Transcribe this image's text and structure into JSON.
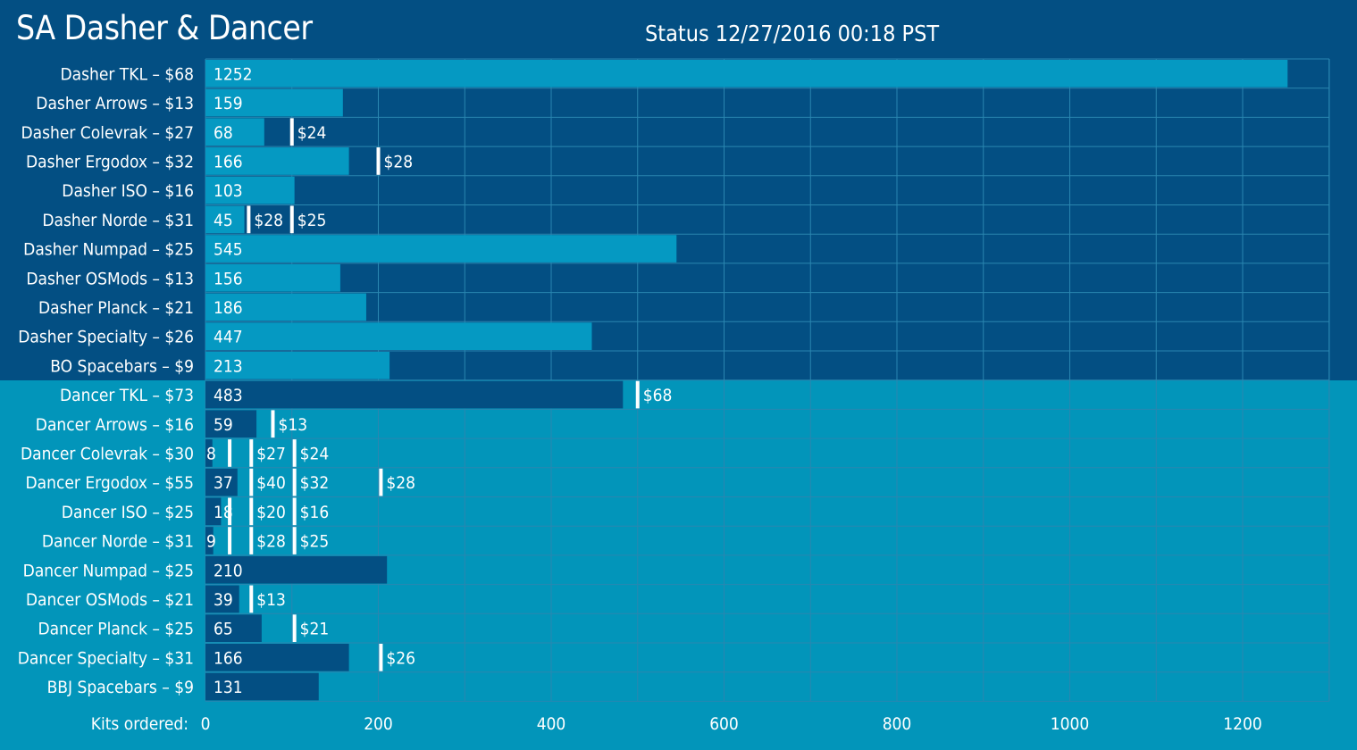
{
  "title": "SA Dasher & Dancer",
  "status": "Status 12/27/2016 00:18 PST",
  "colors": {
    "dasher_background": "#034f83",
    "dancer_background": "#0295ba",
    "dasher_bar": "#0599c2",
    "dancer_bar": "#034f83",
    "grid": "#2a86b0",
    "threshold_marker": "#ffffff",
    "text": "#ffffff"
  },
  "chart_data": {
    "type": "bar",
    "orientation": "horizontal",
    "xlabel": "Kits ordered:",
    "xlim": [
      0,
      1300
    ],
    "xticks": [
      0,
      200,
      400,
      600,
      800,
      1000,
      1200
    ],
    "grid": true,
    "categories": [
      "Dasher TKL – $68",
      "Dasher Arrows – $13",
      "Dasher Colevrak – $27",
      "Dasher Ergodox – $32",
      "Dasher ISO – $16",
      "Dasher Norde – $31",
      "Dasher Numpad – $25",
      "Dasher OSMods – $13",
      "Dasher Planck – $21",
      "Dasher Specialty – $26",
      "BO Spacebars – $9",
      "Dancer TKL – $73",
      "Dancer Arrows – $16",
      "Dancer Colevrak – $30",
      "Dancer Ergodox – $55",
      "Dancer ISO – $25",
      "Dancer Norde – $31",
      "Dancer Numpad – $25",
      "Dancer OSMods – $21",
      "Dancer Planck – $25",
      "Dancer Specialty – $31",
      "BBJ Spacebars – $9"
    ],
    "groups": [
      "dasher",
      "dasher",
      "dasher",
      "dasher",
      "dasher",
      "dasher",
      "dasher",
      "dasher",
      "dasher",
      "dasher",
      "dasher",
      "dancer",
      "dancer",
      "dancer",
      "dancer",
      "dancer",
      "dancer",
      "dancer",
      "dancer",
      "dancer",
      "dancer",
      "dancer"
    ],
    "values": [
      1252,
      159,
      68,
      166,
      103,
      45,
      545,
      156,
      186,
      447,
      213,
      483,
      59,
      8,
      37,
      18,
      9,
      210,
      39,
      65,
      166,
      131
    ],
    "value_labels": [
      "1252",
      "159",
      "68",
      "166",
      "103",
      "45",
      "545",
      "156",
      "186",
      "447",
      "213",
      "483",
      "59",
      "8",
      "37",
      "18",
      "9",
      "210",
      "39",
      "65",
      "166",
      "131"
    ],
    "price_breaks": [
      [],
      [],
      [
        {
          "at": 100,
          "label": "$24"
        }
      ],
      [
        {
          "at": 200,
          "label": "$28"
        }
      ],
      [],
      [
        {
          "at": 50,
          "label": "$28"
        },
        {
          "at": 100,
          "label": "$25"
        }
      ],
      [],
      [],
      [],
      [],
      [],
      [
        {
          "at": 500,
          "label": "$68"
        }
      ],
      [
        {
          "at": 78,
          "label": "$13"
        }
      ],
      [
        {
          "at": 28,
          "label": ""
        },
        {
          "at": 53,
          "label": "$27"
        },
        {
          "at": 103,
          "label": "$24"
        }
      ],
      [
        {
          "at": 53,
          "label": "$40"
        },
        {
          "at": 103,
          "label": "$32"
        },
        {
          "at": 203,
          "label": "$28"
        }
      ],
      [
        {
          "at": 28,
          "label": ""
        },
        {
          "at": 53,
          "label": "$20"
        },
        {
          "at": 103,
          "label": "$16"
        }
      ],
      [
        {
          "at": 28,
          "label": ""
        },
        {
          "at": 53,
          "label": "$28"
        },
        {
          "at": 103,
          "label": "$25"
        }
      ],
      [],
      [
        {
          "at": 53,
          "label": "$13"
        }
      ],
      [
        {
          "at": 103,
          "label": "$21"
        }
      ],
      [
        {
          "at": 203,
          "label": "$26"
        }
      ],
      []
    ]
  }
}
